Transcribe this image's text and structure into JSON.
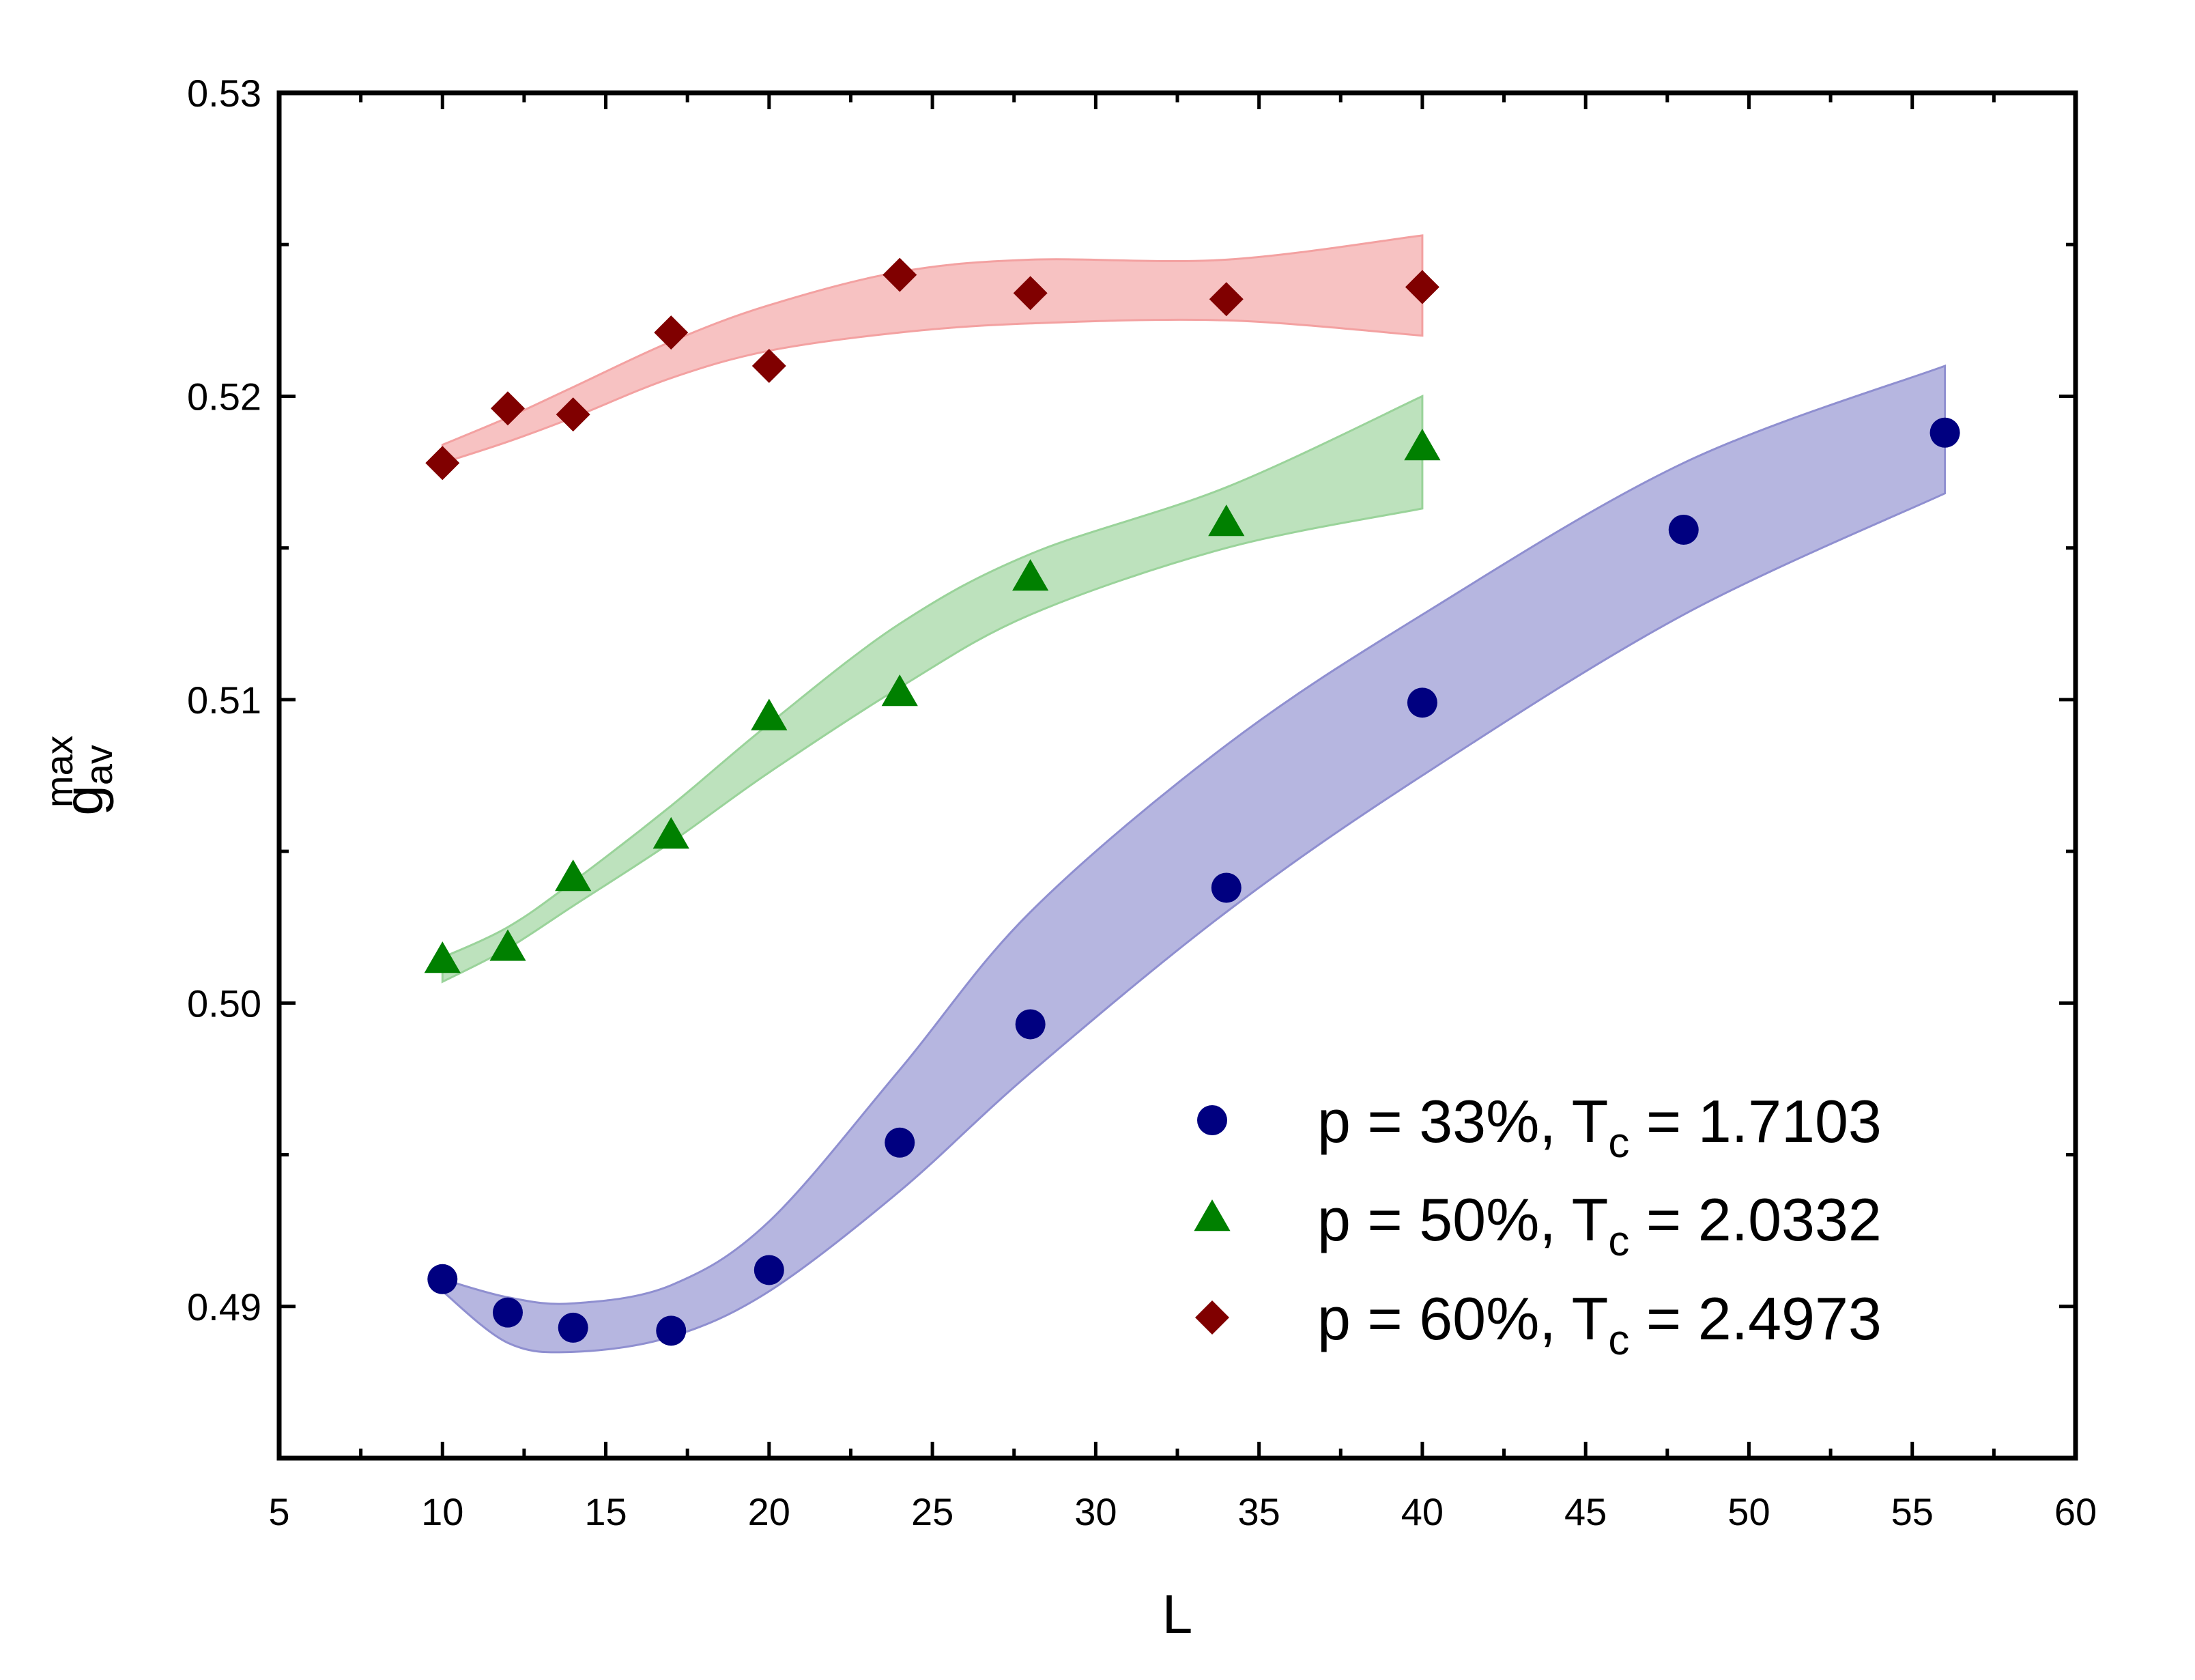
{
  "chart_data": {
    "type": "scatter",
    "title": "",
    "xlabel": "L",
    "ylabel": "g",
    "ylabel_subscript": "av",
    "ylabel_superscript": "max",
    "xlim": [
      5,
      60
    ],
    "ylim": [
      0.485,
      0.53
    ],
    "x_ticks": [
      "5",
      "10",
      "15",
      "20",
      "25",
      "30",
      "35",
      "40",
      "45",
      "50",
      "55",
      "60"
    ],
    "y_ticks": [
      "0.49",
      "0.50",
      "0.51",
      "0.52",
      "0.53"
    ],
    "grid": false,
    "legend_position": "bottom-right",
    "series": [
      {
        "name_main": "p = 33%, T",
        "name_sub": "c",
        "name_value": " = 1.7103",
        "marker": "circle",
        "color": "#000080",
        "band_color": "#8f8fd0",
        "x": [
          10,
          12,
          14,
          17,
          20,
          24,
          28,
          34,
          40,
          48,
          56
        ],
        "y": [
          0.4909,
          0.4898,
          0.4893,
          0.4892,
          0.4912,
          0.4954,
          0.4993,
          0.5038,
          0.5099,
          0.5156,
          0.5188
        ],
        "band_x": [
          10,
          12,
          14,
          17,
          20,
          24,
          28,
          34,
          40,
          48,
          56
        ],
        "band_upper": [
          0.4909,
          0.4903,
          0.4901,
          0.4907,
          0.4928,
          0.4978,
          0.503,
          0.5085,
          0.5128,
          0.5178,
          0.521
        ],
        "band_lower": [
          0.4905,
          0.4888,
          0.4885,
          0.489,
          0.4905,
          0.4938,
          0.4977,
          0.503,
          0.5075,
          0.5128,
          0.5168
        ]
      },
      {
        "name_main": "p = 50%, T",
        "name_sub": "c",
        "name_value": " = 2.0332",
        "marker": "triangle",
        "color": "#008000",
        "band_color": "#9ad39a",
        "x": [
          10,
          12,
          14,
          17,
          20,
          24,
          28,
          34,
          40
        ],
        "y": [
          0.5014,
          0.5018,
          0.5041,
          0.5055,
          0.5094,
          0.5102,
          0.514,
          0.5158,
          0.5183
        ],
        "band_x": [
          10,
          12,
          14,
          17,
          20,
          24,
          28,
          34,
          40
        ],
        "band_upper": [
          0.5015,
          0.5025,
          0.504,
          0.5065,
          0.5092,
          0.5125,
          0.5148,
          0.517,
          0.52
        ],
        "band_lower": [
          0.5007,
          0.5018,
          0.5032,
          0.5053,
          0.5076,
          0.5104,
          0.5128,
          0.515,
          0.5163
        ]
      },
      {
        "name_main": "p = 60%, T",
        "name_sub": "c",
        "name_value": " = 2.4973",
        "marker": "diamond",
        "color": "#800000",
        "band_color": "#f3a1a1",
        "x": [
          10,
          12,
          14,
          17,
          20,
          24,
          28,
          34,
          40
        ],
        "y": [
          0.5178,
          0.5196,
          0.5194,
          0.5221,
          0.521,
          0.524,
          0.5234,
          0.5232,
          0.5236
        ],
        "band_x": [
          10,
          12,
          14,
          17,
          20,
          24,
          28,
          34,
          40
        ],
        "band_upper": [
          0.5184,
          0.5193,
          0.5203,
          0.5218,
          0.523,
          0.5241,
          0.5245,
          0.5245,
          0.5253
        ],
        "band_lower": [
          0.5178,
          0.5185,
          0.5193,
          0.5206,
          0.5215,
          0.5221,
          0.5224,
          0.5225,
          0.522
        ]
      }
    ]
  }
}
